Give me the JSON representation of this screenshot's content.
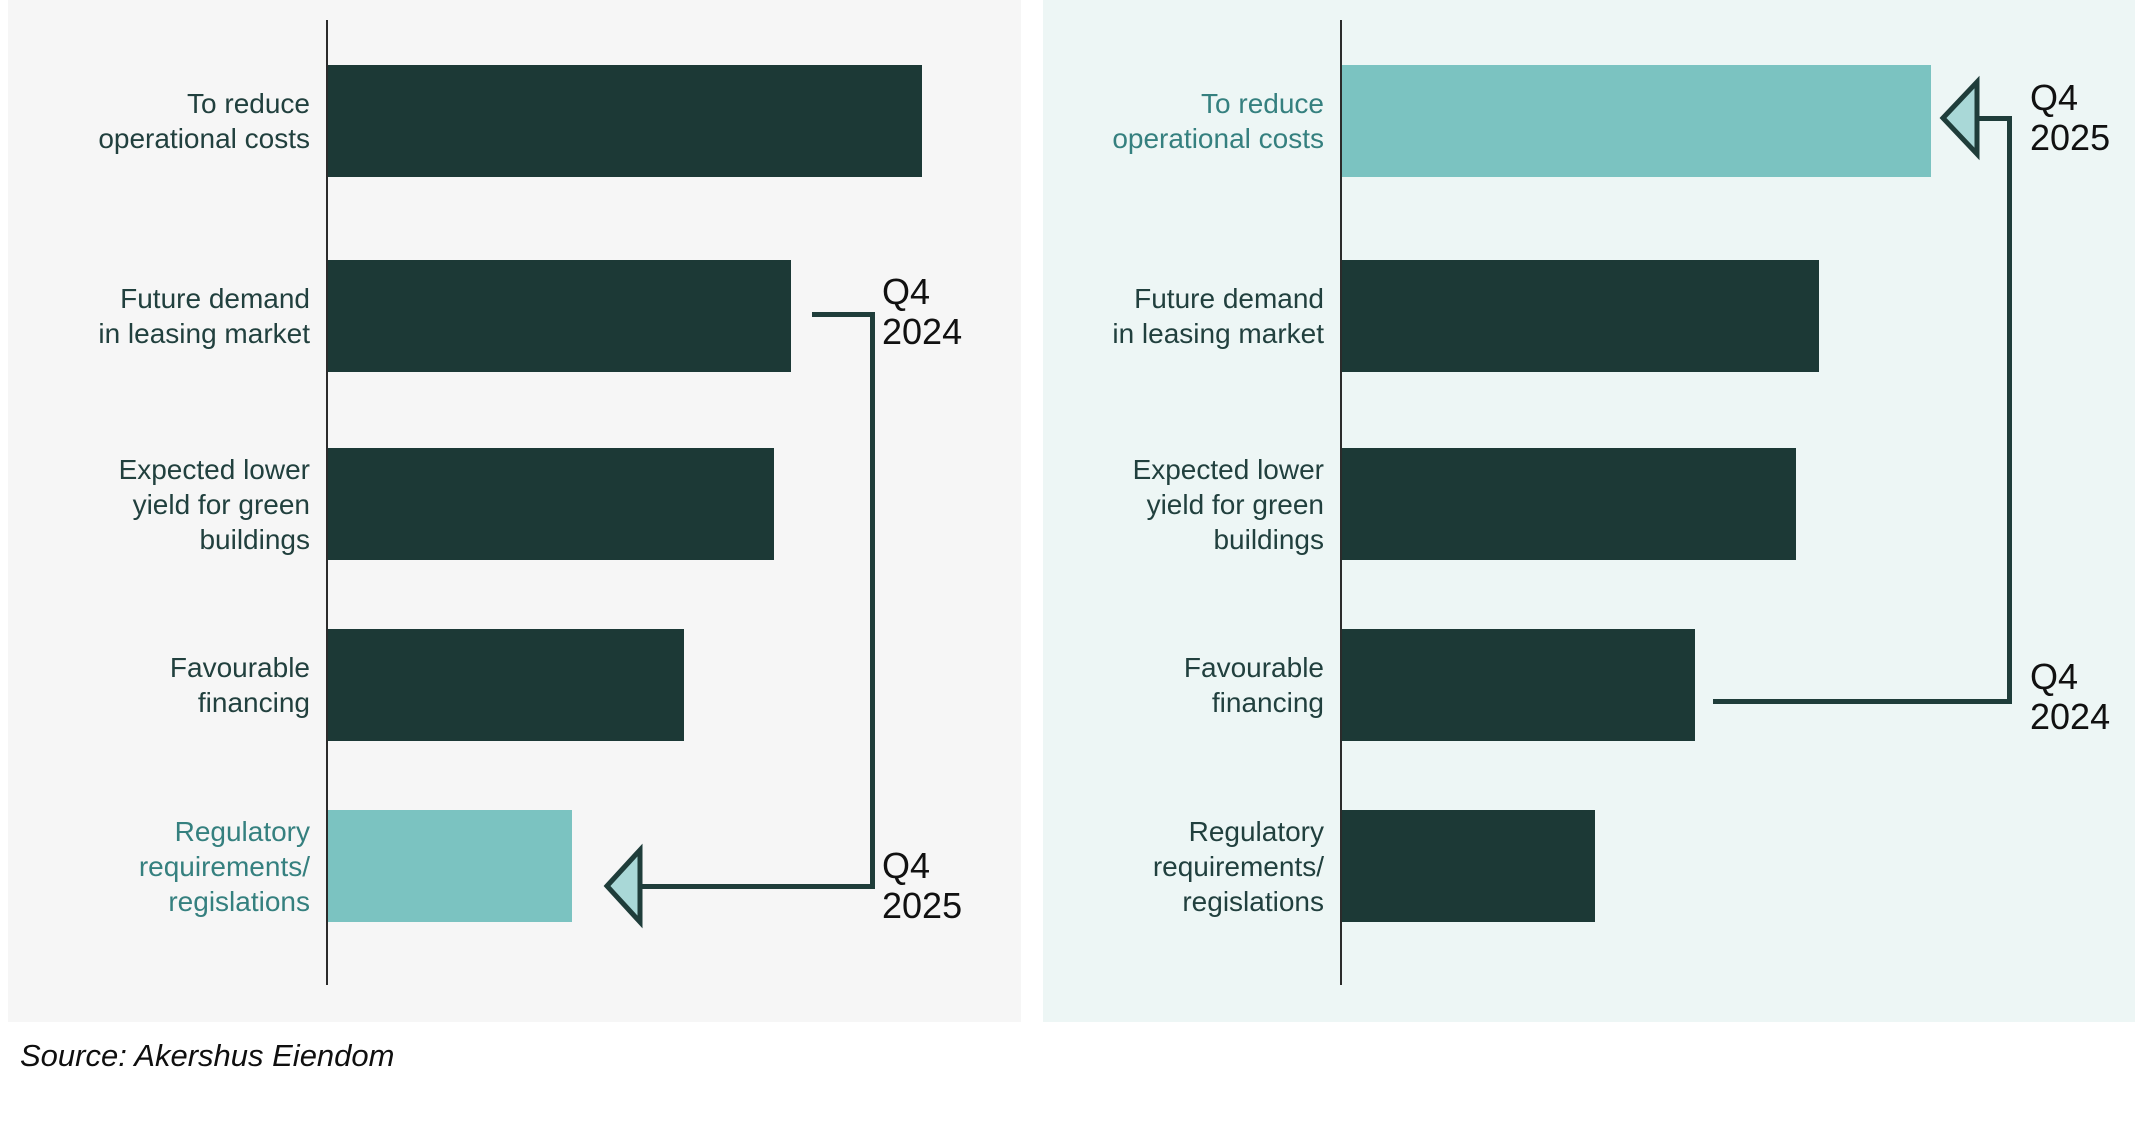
{
  "source": {
    "label": "Source: Akershus Eiendom"
  },
  "colors": {
    "page_bg": "#ffffff",
    "left_panel_bg": "#f6f6f6",
    "right_panel_bg": "#edf6f5",
    "dark_bar": "#1c3936",
    "teal_bar": "#7bc3c1",
    "arrow_fill": "#a9d8d7",
    "connector": "#1f3d3a",
    "axis": "#2b2b2b",
    "dark_label_text": "#21403e",
    "teal_label_text": "#35807f",
    "annotation_text": "#111111"
  },
  "chart_data": [
    {
      "type": "bar",
      "orientation": "horizontal",
      "panel": "left",
      "title": "",
      "xlabel": "",
      "ylabel": "",
      "value_axis": "none shown (no ticks, no gridlines); values estimated from bar lengths, longest bar = 100",
      "categories": [
        "To reduce operational costs",
        "Future demand in leasing market",
        "Expected lower yield for green buildings",
        "Favourable financing",
        "Regulatory requirements/ regislations"
      ],
      "label_lines": [
        [
          "To reduce",
          "operational costs"
        ],
        [
          "Future demand",
          "in leasing market"
        ],
        [
          "Expected lower",
          "yield for green",
          "buildings"
        ],
        [
          "Favourable",
          "financing"
        ],
        [
          "Regulatory",
          "requirements/",
          "regislations"
        ]
      ],
      "values": [
        100,
        78,
        75,
        60,
        41
      ],
      "highlight_category_index": 4,
      "annotations": [
        {
          "label": "Q4 2024",
          "attached_to_category_index": 1,
          "arrow": false
        },
        {
          "label": "Q4 2025",
          "attached_to_category_index": 4,
          "arrow": true
        }
      ]
    },
    {
      "type": "bar",
      "orientation": "horizontal",
      "panel": "right",
      "title": "",
      "xlabel": "",
      "ylabel": "",
      "value_axis": "none shown (no ticks, no gridlines); values estimated from bar lengths, longest bar = 100",
      "categories": [
        "To reduce operational costs",
        "Future demand in leasing market",
        "Expected lower yield for green buildings",
        "Favourable financing",
        "Regulatory requirements/ regislations"
      ],
      "label_lines": [
        [
          "To reduce",
          "operational costs"
        ],
        [
          "Future demand",
          "in leasing market"
        ],
        [
          "Expected lower",
          "yield for green",
          "buildings"
        ],
        [
          "Favourable",
          "financing"
        ],
        [
          "Regulatory",
          "requirements/",
          "regislations"
        ]
      ],
      "values": [
        100,
        81,
        77,
        60,
        43
      ],
      "highlight_category_index": 0,
      "annotations": [
        {
          "label": "Q4 2025",
          "attached_to_category_index": 0,
          "arrow": true
        },
        {
          "label": "Q4 2024",
          "attached_to_category_index": 3,
          "arrow": false
        }
      ]
    }
  ]
}
